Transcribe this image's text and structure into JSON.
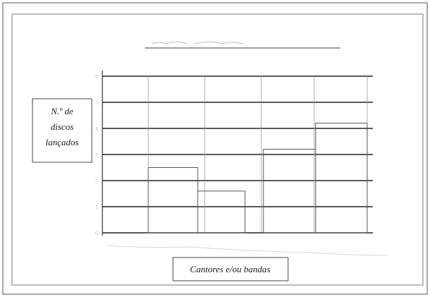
{
  "chart_data": {
    "type": "bar",
    "y_label": "N.º de discos lançados",
    "x_label": "Cantores e/ou bandas",
    "categories": [
      null,
      null,
      null,
      null,
      null,
      null
    ],
    "values": [
      null,
      2.5,
      1.6,
      null,
      3.2,
      4.2
    ],
    "color": "none",
    "ylim": [
      0,
      6
    ],
    "yticks": [
      0,
      1,
      2,
      3,
      4,
      5,
      6
    ],
    "grid": true
  }
}
